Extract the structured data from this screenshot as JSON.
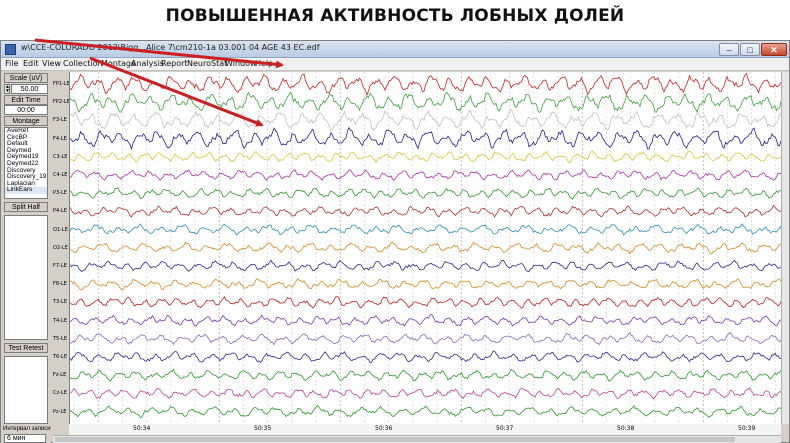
{
  "caption": "ПОВЫШЕННАЯ АКТИВНОСТЬ ЛОБНЫХ ДОЛЕЙ",
  "window": {
    "title": "w\\CCE-COLORADO 2013\\Bigg...Alice 7\\cm210-1a 03.001 04 AGE 43 EC.edf",
    "buttons": {
      "min": "–",
      "max": "□",
      "close": "✕"
    }
  },
  "menu": [
    "File",
    "Edit",
    "View",
    "Collection",
    "Montage",
    "Analysis",
    "Report",
    "NeuroStat",
    "Window",
    "Help"
  ],
  "sidebar": {
    "scale_label": "Scale (uV)",
    "scale_value": "50.00",
    "edit_time_label": "Edit Time",
    "edit_time_value": "00:00",
    "montage_label": "Montage",
    "montage_options": [
      "AveRef",
      "CircBP",
      "Default",
      "Deymed",
      "Deymed19",
      "Deymed22",
      "Discovery",
      "Discovery_19",
      "Laplacian",
      "LinkEars"
    ],
    "split_half_label": "Split Half",
    "test_retest_label": "Test Retest",
    "record_interval_label": "Интервал записи",
    "record_interval_value": "6 мин"
  },
  "channels": [
    "FP1-LE",
    "FP2-LE",
    "F3-LE",
    "F4-LE",
    "C3-LE",
    "C4-LE",
    "P3-LE",
    "P4-LE",
    "O1-LE",
    "O2-LE",
    "F7-LE",
    "F8-LE",
    "T3-LE",
    "T4-LE",
    "T5-LE",
    "T6-LE",
    "Fz-LE",
    "Cz-LE",
    "Pz-LE"
  ],
  "channel_colors": [
    "#cc2222",
    "#3ca23c",
    "#c0c0c0",
    "#202090",
    "#d9c43a",
    "#b030b0",
    "#2e9a2e",
    "#b03030",
    "#2a8fb8",
    "#d88a20",
    "#2a2a90",
    "#d88a20",
    "#c02020",
    "#7a3ab0",
    "#8a6ab8",
    "#2a2a90",
    "#2a9a2a",
    "#c040a0",
    "#2a9a2a"
  ],
  "time_labels": [
    "50:34",
    "50:35",
    "50:36",
    "50:37",
    "50:38",
    "50:39"
  ],
  "annotation_color": "#cc1f1f"
}
